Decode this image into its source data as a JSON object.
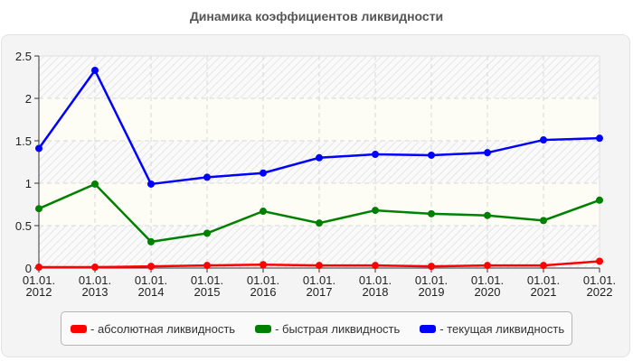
{
  "title": "Динамика коэффициентов ликвидности",
  "colors": {
    "absolute": "#ff0000",
    "quick": "#008000",
    "current": "#0000ff",
    "panel_bg": "#f4f4f4",
    "band_yellow": "#fdfdf5"
  },
  "legend": [
    {
      "label": "- абсолютная ликвидность",
      "color": "#ff0000"
    },
    {
      "label": "- быстрая ликвидность",
      "color": "#008000"
    },
    {
      "label": "- текущая ликвидность",
      "color": "#0000ff"
    }
  ],
  "chart_data": {
    "type": "line",
    "title": "Динамика коэффициентов ликвидности",
    "xlabel": "",
    "ylabel": "",
    "categories": [
      "01.01. 2012",
      "01.01. 2013",
      "01.01. 2014",
      "01.01. 2015",
      "01.01. 2016",
      "01.01. 2017",
      "01.01. 2018",
      "01.01. 2019",
      "01.01. 2020",
      "01.01. 2021",
      "01.01. 2022"
    ],
    "yticks": [
      "0",
      "0.5",
      "1",
      "1.5",
      "2",
      "2.5"
    ],
    "ylim": [
      0,
      2.5
    ],
    "grid": true,
    "legend_position": "bottom",
    "series": [
      {
        "name": "абсолютная ликвидность",
        "color": "#ff0000",
        "values": [
          0.01,
          0.01,
          0.02,
          0.03,
          0.04,
          0.03,
          0.03,
          0.02,
          0.03,
          0.03,
          0.08
        ]
      },
      {
        "name": "быстрая ликвидность",
        "color": "#008000",
        "values": [
          0.7,
          0.99,
          0.31,
          0.41,
          0.67,
          0.53,
          0.68,
          0.64,
          0.62,
          0.56,
          0.8
        ]
      },
      {
        "name": "текущая ликвидность",
        "color": "#0000ff",
        "values": [
          1.41,
          2.33,
          0.99,
          1.07,
          1.12,
          1.3,
          1.34,
          1.33,
          1.36,
          1.51,
          1.53
        ]
      }
    ]
  }
}
